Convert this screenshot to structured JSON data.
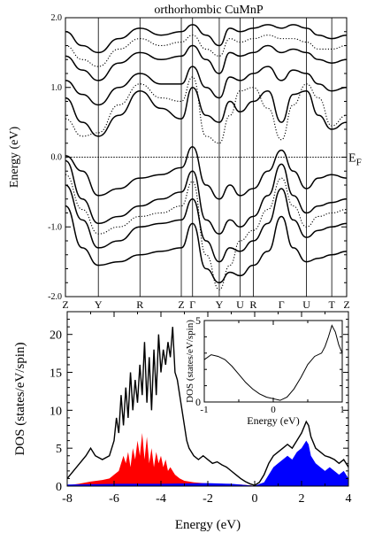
{
  "chart_data": [
    {
      "type": "line",
      "title": "orthorhombic CuMnP",
      "ylabel": "Energy (eV)",
      "xlabel": "",
      "ylim": [
        -2.0,
        2.0
      ],
      "yticks": [
        "-2.0",
        "-1.0",
        "0.0",
        "1.0",
        "2.0"
      ],
      "yticks_val": [
        -2,
        -1,
        0,
        1,
        2
      ],
      "fermi_label": "E",
      "fermi_sub": "F",
      "fermi_energy": 0.0,
      "kpath": [
        "Z",
        "Y",
        "R",
        "Z",
        "Γ",
        "Y",
        "U",
        "R",
        "Γ",
        "U",
        "T",
        "Z"
      ],
      "kpos": [
        0,
        0.117,
        0.265,
        0.412,
        0.452,
        0.547,
        0.621,
        0.668,
        0.768,
        0.857,
        0.947,
        1.0
      ],
      "kpath_grid": [
        1,
        2,
        3,
        4,
        5,
        6,
        7,
        9,
        10
      ],
      "series": [
        {
          "style": "solid",
          "x": [
            0,
            0.06,
            0.117,
            0.19,
            0.265,
            0.34,
            0.412,
            0.452,
            0.5,
            0.547,
            0.585,
            0.621,
            0.668,
            0.72,
            0.768,
            0.81,
            0.857,
            0.9,
            0.947,
            1.0
          ],
          "y": [
            0.02,
            -0.2,
            -0.55,
            -0.45,
            -0.3,
            -0.25,
            -0.15,
            0.15,
            -0.4,
            -0.6,
            -0.4,
            -0.55,
            -0.45,
            -0.2,
            0.1,
            -0.2,
            -0.45,
            -0.3,
            -0.25,
            -0.3
          ]
        },
        {
          "style": "solid",
          "x": [
            0,
            0.06,
            0.117,
            0.19,
            0.265,
            0.34,
            0.412,
            0.452,
            0.5,
            0.547,
            0.585,
            0.621,
            0.668,
            0.72,
            0.768,
            0.81,
            0.857,
            0.9,
            0.947,
            1.0
          ],
          "y": [
            -0.05,
            -0.6,
            -0.95,
            -0.85,
            -0.7,
            -0.6,
            -0.5,
            -0.2,
            -0.9,
            -1.1,
            -0.9,
            -1.0,
            -0.85,
            -0.55,
            -0.1,
            -0.55,
            -0.8,
            -0.7,
            -0.65,
            -0.6
          ]
        },
        {
          "style": "solid",
          "x": [
            0,
            0.06,
            0.117,
            0.19,
            0.265,
            0.34,
            0.412,
            0.452,
            0.5,
            0.547,
            0.585,
            0.621,
            0.668,
            0.72,
            0.768,
            0.81,
            0.857,
            0.9,
            0.947,
            1.0
          ],
          "y": [
            -0.4,
            -0.9,
            -1.3,
            -1.2,
            -1.0,
            -0.95,
            -0.9,
            -0.6,
            -1.2,
            -1.5,
            -1.3,
            -1.35,
            -1.2,
            -0.95,
            -0.45,
            -0.9,
            -1.15,
            -1.05,
            -1.0,
            -0.95
          ]
        },
        {
          "style": "solid",
          "x": [
            0,
            0.06,
            0.117,
            0.19,
            0.265,
            0.34,
            0.412,
            0.452,
            0.5,
            0.547,
            0.585,
            0.621,
            0.668,
            0.72,
            0.768,
            0.81,
            0.857,
            0.9,
            0.947,
            1.0
          ],
          "y": [
            -0.7,
            -1.3,
            -1.55,
            -1.5,
            -1.4,
            -1.35,
            -1.3,
            -0.95,
            -1.6,
            -1.8,
            -1.65,
            -1.7,
            -1.55,
            -1.35,
            -0.85,
            -1.3,
            -1.5,
            -1.45,
            -1.4,
            -1.35
          ]
        },
        {
          "style": "solid",
          "x": [
            0,
            0.06,
            0.117,
            0.19,
            0.265,
            0.34,
            0.412,
            0.452,
            0.5,
            0.547,
            0.585,
            0.621,
            0.668,
            0.72,
            0.768,
            0.81,
            0.857,
            0.9,
            0.947,
            1.0
          ],
          "y": [
            0.85,
            0.5,
            0.3,
            0.6,
            0.95,
            0.7,
            0.55,
            1.0,
            0.6,
            0.5,
            0.8,
            0.65,
            0.8,
            0.95,
            0.5,
            0.9,
            0.95,
            0.6,
            0.4,
            0.5
          ]
        },
        {
          "style": "solid",
          "x": [
            0,
            0.06,
            0.117,
            0.19,
            0.265,
            0.34,
            0.412,
            0.452,
            0.5,
            0.547,
            0.585,
            0.621,
            0.668,
            0.72,
            0.768,
            0.81,
            0.857,
            0.9,
            0.947,
            1.0
          ],
          "y": [
            1.1,
            0.9,
            0.75,
            1.0,
            1.2,
            1.05,
            1.05,
            1.3,
            1.0,
            0.85,
            1.15,
            1.1,
            1.2,
            1.3,
            1.1,
            1.25,
            1.2,
            1.05,
            0.95,
            1.0
          ]
        },
        {
          "style": "solid",
          "x": [
            0,
            0.06,
            0.117,
            0.19,
            0.265,
            0.34,
            0.412,
            0.452,
            0.5,
            0.547,
            0.585,
            0.621,
            0.668,
            0.72,
            0.768,
            0.81,
            0.857,
            0.9,
            0.947,
            1.0
          ],
          "y": [
            1.45,
            1.25,
            1.1,
            1.35,
            1.5,
            1.4,
            1.45,
            1.6,
            1.4,
            1.2,
            1.5,
            1.45,
            1.5,
            1.6,
            1.5,
            1.55,
            1.5,
            1.4,
            1.35,
            1.4
          ]
        },
        {
          "style": "solid",
          "x": [
            0,
            0.06,
            0.117,
            0.19,
            0.265,
            0.34,
            0.412,
            0.452,
            0.5,
            0.547,
            0.585,
            0.621,
            0.668,
            0.72,
            0.768,
            0.81,
            0.857,
            0.9,
            0.947,
            1.0
          ],
          "y": [
            1.8,
            1.6,
            1.5,
            1.7,
            1.85,
            1.75,
            1.8,
            1.9,
            1.75,
            1.6,
            1.85,
            1.8,
            1.85,
            1.9,
            1.85,
            1.9,
            1.85,
            1.75,
            1.7,
            1.75
          ]
        },
        {
          "style": "dotted",
          "x": [
            0,
            0.06,
            0.117,
            0.19,
            0.265,
            0.34,
            0.412,
            0.452,
            0.5,
            0.547,
            0.585,
            0.621,
            0.668,
            0.72,
            0.768,
            0.81,
            0.857,
            0.9,
            0.947,
            1.0
          ],
          "y": [
            0.55,
            0.3,
            0.35,
            0.75,
            1.05,
            0.85,
            0.8,
            1.15,
            0.3,
            0.2,
            0.6,
            0.95,
            1.0,
            0.7,
            0.25,
            0.75,
            1.05,
            0.85,
            0.45,
            0.6
          ]
        },
        {
          "style": "dotted",
          "x": [
            0,
            0.06,
            0.117,
            0.19,
            0.265,
            0.34,
            0.412,
            0.452,
            0.5,
            0.547,
            0.585,
            0.621,
            0.668,
            0.72,
            0.768,
            0.81,
            0.857,
            0.9,
            0.947,
            1.0
          ],
          "y": [
            -0.25,
            -0.75,
            -1.1,
            -1.0,
            -0.85,
            -0.8,
            -0.7,
            -0.35,
            -1.4,
            -1.9,
            -1.55,
            -1.2,
            -1.05,
            -0.75,
            -0.3,
            -0.7,
            -1.0,
            -0.85,
            -0.8,
            -0.75
          ]
        },
        {
          "style": "dotted",
          "x": [
            0,
            0.06,
            0.117,
            0.19,
            0.265,
            0.34,
            0.412,
            0.452,
            0.5,
            0.547,
            0.585,
            0.621,
            0.668,
            0.72,
            0.768,
            0.81,
            0.857,
            0.9,
            0.947,
            1.0
          ],
          "y": [
            1.6,
            1.4,
            1.3,
            1.55,
            1.7,
            1.6,
            1.65,
            1.75,
            1.55,
            1.45,
            1.7,
            1.65,
            1.7,
            1.75,
            1.7,
            1.7,
            1.65,
            1.55,
            1.55,
            1.6
          ]
        }
      ]
    },
    {
      "type": "area",
      "xlabel": "Energy (eV)",
      "ylabel": "DOS (states/eV/spin)",
      "xlim": [
        -8,
        4
      ],
      "ylim": [
        0,
        23
      ],
      "xticks": [
        "-8",
        "-6",
        "-4",
        "-2",
        "0",
        "2",
        "4"
      ],
      "xticks_val": [
        -8,
        -6,
        -4,
        -2,
        0,
        2,
        4
      ],
      "yticks": [
        "0",
        "5",
        "10",
        "15",
        "20"
      ],
      "yticks_val": [
        0,
        5,
        10,
        15,
        20
      ],
      "fill_colors": {
        "red": "#ff0000",
        "blue": "#0000ff"
      },
      "series": [
        {
          "color": "#000000",
          "style": "line",
          "x": [
            -8,
            -7.6,
            -7.2,
            -7.0,
            -6.8,
            -6.5,
            -6.2,
            -6.0,
            -5.9,
            -5.8,
            -5.7,
            -5.6,
            -5.5,
            -5.4,
            -5.3,
            -5.2,
            -5.1,
            -5.0,
            -4.9,
            -4.8,
            -4.7,
            -4.6,
            -4.5,
            -4.4,
            -4.3,
            -4.2,
            -4.1,
            -4.0,
            -3.9,
            -3.8,
            -3.7,
            -3.6,
            -3.5,
            -3.4,
            -3.3,
            -3.2,
            -3.1,
            -3.0,
            -2.9,
            -2.8,
            -2.6,
            -2.4,
            -2.2,
            -2.0,
            -1.8,
            -1.6,
            -1.4,
            -1.2,
            -1.0,
            -0.8,
            -0.6,
            -0.4,
            -0.2,
            0.0,
            0.2,
            0.4,
            0.6,
            0.8,
            1.0,
            1.2,
            1.4,
            1.6,
            1.8,
            2.0,
            2.2,
            2.3,
            2.4,
            2.6,
            2.8,
            3.0,
            3.2,
            3.4,
            3.6,
            3.8,
            4.0
          ],
          "y": [
            1.0,
            2.5,
            4.0,
            5.0,
            4.0,
            3.5,
            4.0,
            6.0,
            9.0,
            7.0,
            12.0,
            8.0,
            13.0,
            9.0,
            15.0,
            10.0,
            14.0,
            11.0,
            16.0,
            12.0,
            19.0,
            11.0,
            17.0,
            10.0,
            18.0,
            12.0,
            20.0,
            15.0,
            18.0,
            16.0,
            19.0,
            17.0,
            21.0,
            15.0,
            14.0,
            12.0,
            10.0,
            8.0,
            6.0,
            5.0,
            4.0,
            3.5,
            4.0,
            3.5,
            3.0,
            3.2,
            2.8,
            2.5,
            2.0,
            1.5,
            1.0,
            0.6,
            0.3,
            0.1,
            0.5,
            1.5,
            3.0,
            4.0,
            4.5,
            5.0,
            5.5,
            5.0,
            6.0,
            7.0,
            8.5,
            8.0,
            6.5,
            5.0,
            4.5,
            4.0,
            3.8,
            3.5,
            3.0,
            3.5,
            2.5
          ]
        },
        {
          "color": "#ff0000",
          "style": "fill",
          "x": [
            -8,
            -7.5,
            -7.0,
            -6.5,
            -6.2,
            -6.0,
            -5.8,
            -5.6,
            -5.5,
            -5.4,
            -5.3,
            -5.2,
            -5.1,
            -5.0,
            -4.9,
            -4.8,
            -4.7,
            -4.6,
            -4.5,
            -4.4,
            -4.3,
            -4.2,
            -4.1,
            -4.0,
            -3.9,
            -3.8,
            -3.7,
            -3.6,
            -3.4,
            -3.2,
            -3.0,
            -2.6,
            -2.2,
            -1.8,
            -1.4,
            -1.0,
            -0.6,
            -0.2,
            0.0
          ],
          "y": [
            0.1,
            0.3,
            0.6,
            0.8,
            1.0,
            1.5,
            2.0,
            4.0,
            3.0,
            4.5,
            2.5,
            5.0,
            3.5,
            6.0,
            4.0,
            7.0,
            3.5,
            6.5,
            3.0,
            5.0,
            2.5,
            4.5,
            3.0,
            4.0,
            2.5,
            3.5,
            2.0,
            2.5,
            1.5,
            1.0,
            0.7,
            0.5,
            0.4,
            0.3,
            0.3,
            0.2,
            0.2,
            0.1,
            0.0
          ]
        },
        {
          "color": "#0000ff",
          "style": "fill",
          "x": [
            -8,
            -6.0,
            -4.0,
            -2.0,
            -1.0,
            0.0,
            0.4,
            0.6,
            0.8,
            1.0,
            1.2,
            1.4,
            1.6,
            1.8,
            2.0,
            2.2,
            2.3,
            2.4,
            2.6,
            2.8,
            3.0,
            3.2,
            3.4,
            3.6,
            3.8,
            4.0
          ],
          "y": [
            0.2,
            0.3,
            0.3,
            0.4,
            0.3,
            0.05,
            0.5,
            1.5,
            2.5,
            3.0,
            3.5,
            4.0,
            3.5,
            4.5,
            5.0,
            6.0,
            5.5,
            4.0,
            3.0,
            2.5,
            2.0,
            2.5,
            2.0,
            1.5,
            2.0,
            1.0
          ]
        }
      ]
    },
    {
      "type": "line",
      "xlabel": "Energy (eV)",
      "ylabel": "DOS (states/eV/spin)",
      "xlim": [
        -1,
        1
      ],
      "ylim": [
        0,
        5
      ],
      "xticks": [
        "-1",
        "0",
        "1"
      ],
      "xticks_val": [
        -1,
        0,
        1
      ],
      "yticks": [
        "0",
        "5"
      ],
      "yticks_val": [
        0,
        5
      ],
      "series": [
        {
          "color": "#000000",
          "style": "line",
          "x": [
            -1.0,
            -0.9,
            -0.8,
            -0.7,
            -0.6,
            -0.5,
            -0.4,
            -0.3,
            -0.2,
            -0.1,
            0.0,
            0.1,
            0.2,
            0.3,
            0.4,
            0.5,
            0.6,
            0.7,
            0.75,
            0.8,
            0.85,
            0.9,
            0.95,
            1.0
          ],
          "y": [
            2.6,
            2.9,
            2.8,
            2.6,
            2.2,
            1.7,
            1.2,
            0.8,
            0.5,
            0.3,
            0.2,
            0.1,
            0.3,
            0.8,
            1.5,
            2.3,
            2.8,
            3.0,
            3.4,
            4.0,
            4.7,
            4.3,
            3.5,
            3.0
          ]
        }
      ]
    }
  ]
}
